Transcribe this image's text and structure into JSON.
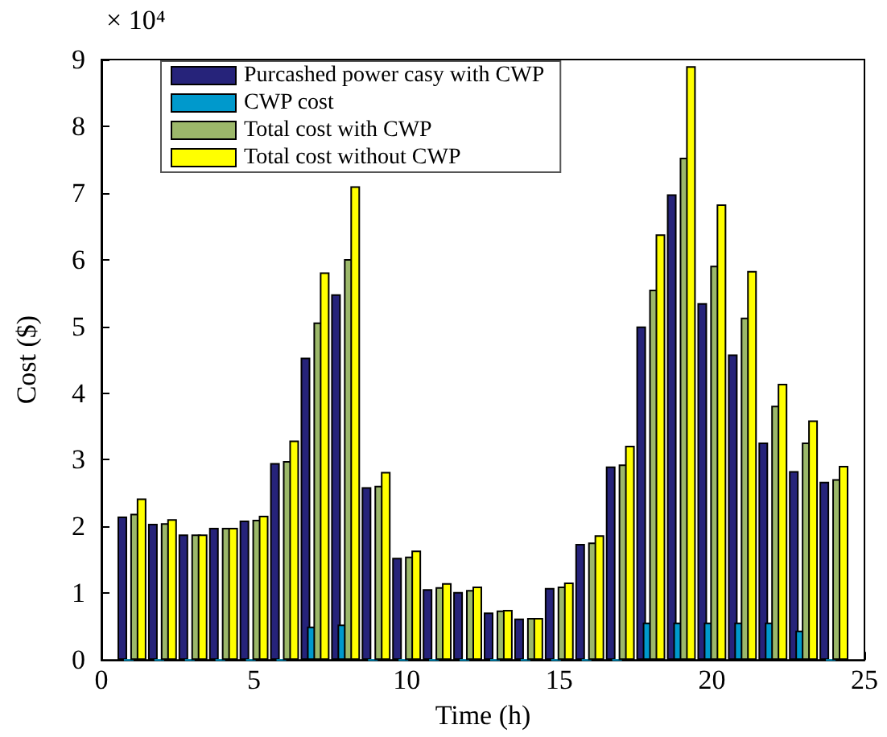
{
  "chart_data": {
    "type": "bar",
    "xlabel": "Time (h)",
    "ylabel": "Cost ($)",
    "annotations": [
      "× 10⁴"
    ],
    "x": [
      1,
      2,
      3,
      4,
      5,
      6,
      7,
      8,
      9,
      10,
      11,
      12,
      13,
      14,
      15,
      16,
      17,
      18,
      19,
      20,
      21,
      22,
      23,
      24
    ],
    "xlim": [
      0,
      25
    ],
    "xticks": [
      0,
      5,
      10,
      15,
      20,
      25
    ],
    "ylim": [
      0,
      9
    ],
    "yticks": [
      0,
      1,
      2,
      3,
      4,
      5,
      6,
      7,
      8,
      9
    ],
    "legend": "top left",
    "grid": false,
    "series": [
      {
        "name": "Purcashed power casy with CWP",
        "color": "#26237a",
        "values": [
          2.15,
          2.04,
          1.88,
          1.98,
          2.09,
          2.95,
          4.53,
          5.48,
          2.59,
          1.53,
          1.06,
          1.02,
          0.71,
          0.62,
          1.08,
          1.74,
          2.9,
          5.0,
          6.98,
          5.35,
          4.58,
          3.26,
          2.83,
          2.67
        ]
      },
      {
        "name": "CWP cost",
        "color": "#0099cc",
        "values": [
          0,
          0,
          0,
          0,
          0,
          0,
          0.5,
          0.53,
          0,
          0,
          0,
          0,
          0,
          0,
          0,
          0,
          0,
          0.56,
          0.56,
          0.56,
          0.56,
          0.56,
          0.44,
          0
        ]
      },
      {
        "name": "Total cost with CWP",
        "color": "#9cb86a",
        "values": [
          2.19,
          2.05,
          1.88,
          1.98,
          2.1,
          2.98,
          5.06,
          6.01,
          2.61,
          1.55,
          1.09,
          1.05,
          0.74,
          0.63,
          1.1,
          1.76,
          2.93,
          5.55,
          7.53,
          5.91,
          5.13,
          3.81,
          3.26,
          2.71
        ]
      },
      {
        "name": "Total cost without CWP",
        "color": "#ffff00",
        "values": [
          2.42,
          2.11,
          1.88,
          1.98,
          2.16,
          3.29,
          5.81,
          7.1,
          2.82,
          1.64,
          1.15,
          1.1,
          0.75,
          0.63,
          1.16,
          1.87,
          3.21,
          6.38,
          8.9,
          6.83,
          5.83,
          4.14,
          3.59,
          2.91
        ]
      }
    ]
  }
}
